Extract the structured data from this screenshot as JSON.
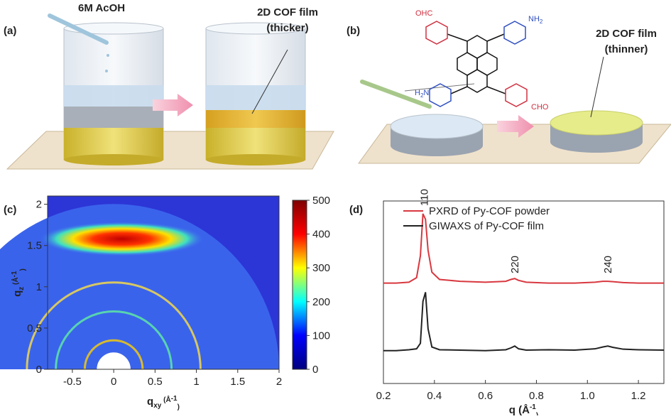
{
  "panel_a": {
    "label": "(a)",
    "reagent": "6M AcOH",
    "film": "2D COF film",
    "film_note": "(thicker)"
  },
  "panel_b": {
    "label": "(b)",
    "film": "2D COF film",
    "film_note": "(thinner)",
    "molecule": {
      "top_left": "OHC",
      "top_right": {
        "text": "NH",
        "sub": "2"
      },
      "bottom_left": {
        "text": "H",
        "sub": "2",
        "rest": "N"
      },
      "bottom_right": "CHO"
    }
  },
  "chart_data": [
    {
      "type": "heatmap",
      "panel_label": "(c)",
      "x_label": [
        "q",
        "xy",
        " (Å",
        "-1",
        ")"
      ],
      "y_label": [
        "q",
        "z",
        " (Å",
        "-1",
        ")"
      ],
      "xlim": [
        -0.8,
        2
      ],
      "xticks": [
        -0.5,
        0,
        0.5,
        1,
        1.5,
        2
      ],
      "ylim": [
        0,
        2.1
      ],
      "yticks": [
        0,
        0.5,
        1,
        1.5,
        2
      ],
      "clim": [
        0,
        500
      ],
      "cticks": [
        0,
        100,
        200,
        300,
        400,
        500
      ],
      "colormap": [
        "#00007f",
        "#0000ff",
        "#00ffff",
        "#ffff00",
        "#ff0000",
        "#7f0000"
      ]
    },
    {
      "type": "line",
      "panel_label": "(d)",
      "x_label": [
        "q (Å",
        "-1",
        ")"
      ],
      "xlim": [
        0.2,
        1.3
      ],
      "xticks": [
        0.2,
        0.4,
        0.6,
        0.8,
        {
          "value": 1,
          "label": "1.0"
        },
        1.2
      ],
      "ylim": [
        0,
        100
      ],
      "x": [
        0.2,
        0.25,
        0.3,
        0.33,
        0.345,
        0.355,
        0.365,
        0.375,
        0.39,
        0.42,
        0.5,
        0.6,
        0.68,
        0.7,
        0.715,
        0.73,
        0.76,
        0.85,
        0.95,
        1.03,
        1.06,
        1.08,
        1.1,
        1.14,
        1.2,
        1.3
      ],
      "series": [
        {
          "name": "PXRD of Py-COF powder",
          "color": "#d8383f",
          "values": [
            55,
            55,
            55.5,
            58,
            70,
            93,
            90,
            73,
            61,
            57,
            56,
            55.5,
            56,
            57,
            57.5,
            56.5,
            55.5,
            55,
            55,
            55.5,
            56,
            56,
            55.8,
            55.3,
            55,
            55
          ]
        },
        {
          "name": "GIWAXS of Py-COF film",
          "color": "#222222",
          "values": [
            18,
            18,
            18.5,
            19,
            22,
            45,
            50,
            30,
            20,
            18.5,
            18.3,
            18,
            18.5,
            19.5,
            20.5,
            19,
            18.3,
            18.5,
            18.3,
            19,
            20,
            20.5,
            19.8,
            18.8,
            18.5,
            18.3
          ]
        }
      ],
      "annotations": [
        {
          "text": "110",
          "x": 0.36
        },
        {
          "text": "220",
          "x": 0.715
        },
        {
          "text": "240",
          "x": 1.08
        }
      ],
      "legend": "upper left"
    }
  ]
}
